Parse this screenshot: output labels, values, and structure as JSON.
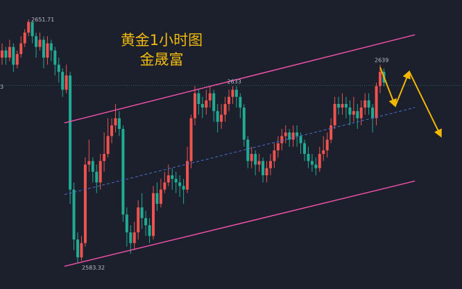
{
  "chart_data": {
    "type": "candlestick",
    "title": "黄金1小时图",
    "subtitle": "金晟富",
    "ylim": [
      2581,
      2657
    ],
    "grid": false,
    "colors": {
      "up": "#ef5350",
      "down": "#22ab94",
      "channel": "#f050a8",
      "midline": "#4a6fd0",
      "arrow": "#f5b800",
      "price_line": "#2f6b5e",
      "background": "#1b202c"
    },
    "first_open": 2641,
    "close": [
      2643,
      2641,
      2644,
      2639,
      2642,
      2645,
      2648,
      2651,
      2647,
      2644,
      2646,
      2641,
      2645,
      2643,
      2639,
      2637,
      2632,
      2636,
      2604,
      2590,
      2585,
      2589,
      2611,
      2612,
      2609,
      2606,
      2612,
      2614,
      2619,
      2622,
      2624,
      2621,
      2597,
      2592,
      2589,
      2592,
      2599,
      2596,
      2594,
      2591,
      2603,
      2600,
      2604,
      2606,
      2608,
      2607,
      2606,
      2605,
      2604,
      2612,
      2624,
      2631,
      2628,
      2627,
      2629,
      2631,
      2626,
      2623,
      2625,
      2628,
      2630,
      2632,
      2630,
      2627,
      2618,
      2612,
      2614,
      2611,
      2612,
      2608,
      2610,
      2612,
      2615,
      2617,
      2619,
      2620,
      2618,
      2620,
      2619,
      2617,
      2614,
      2612,
      2611,
      2610,
      2614,
      2615,
      2618,
      2622,
      2628,
      2627,
      2628,
      2627,
      2625,
      2626,
      2624,
      2627,
      2629,
      2627,
      2624,
      2633,
      2637,
      2634
    ],
    "high": [
      2645,
      2644,
      2646,
      2645,
      2643,
      2647,
      2649,
      2651.71,
      2651,
      2648,
      2648,
      2647,
      2647,
      2646,
      2644,
      2641,
      2638,
      2639,
      2637,
      2606,
      2592,
      2591,
      2613,
      2618,
      2613,
      2611,
      2614,
      2620,
      2624,
      2624,
      2628,
      2626,
      2622,
      2599,
      2594,
      2595,
      2601,
      2603,
      2598,
      2596,
      2605,
      2606,
      2607,
      2609,
      2611,
      2610,
      2609,
      2608,
      2607,
      2616,
      2625,
      2633,
      2632,
      2630,
      2632,
      2633,
      2632,
      2628,
      2628,
      2630,
      2632,
      2633,
      2633,
      2631,
      2628,
      2619,
      2616,
      2615,
      2614,
      2613,
      2612,
      2614,
      2617,
      2619,
      2621,
      2622,
      2621,
      2622,
      2622,
      2620,
      2618,
      2616,
      2614,
      2613,
      2616,
      2619,
      2620,
      2624,
      2630,
      2630,
      2631,
      2630,
      2629,
      2630,
      2628,
      2629,
      2631,
      2631,
      2628,
      2634,
      2639,
      2638
    ],
    "low": [
      2639,
      2639,
      2640,
      2637,
      2638,
      2641,
      2644,
      2647,
      2645,
      2641,
      2643,
      2638,
      2639,
      2640,
      2636,
      2634,
      2630,
      2631,
      2600,
      2587,
      2583.32,
      2584,
      2588,
      2609,
      2606,
      2603,
      2604,
      2609,
      2613,
      2617,
      2620,
      2619,
      2595,
      2588,
      2586,
      2587,
      2590,
      2593,
      2591,
      2589,
      2590,
      2598,
      2599,
      2603,
      2605,
      2604,
      2603,
      2602,
      2600,
      2603,
      2610,
      2622,
      2625,
      2624,
      2625,
      2627,
      2623,
      2620,
      2621,
      2623,
      2626,
      2628,
      2627,
      2624,
      2616,
      2610,
      2610,
      2608,
      2609,
      2606,
      2606,
      2608,
      2610,
      2613,
      2615,
      2617,
      2616,
      2616,
      2616,
      2614,
      2612,
      2610,
      2609,
      2608,
      2609,
      2612,
      2613,
      2617,
      2621,
      2625,
      2625,
      2624,
      2622,
      2623,
      2621,
      2622,
      2625,
      2625,
      2620,
      2622,
      2631,
      2633
    ],
    "annotations": [
      {
        "text": "2651.71",
        "index": 7,
        "price": 2651.71,
        "kind": "high"
      },
      {
        "text": "2583.32",
        "index": 20,
        "price": 2583.32,
        "kind": "low"
      },
      {
        "text": "2633",
        "index": 61,
        "price": 2633,
        "kind": "high"
      },
      {
        "text": "2639",
        "index": 100,
        "price": 2639,
        "kind": "high"
      }
    ],
    "price_line": {
      "price": 2633.2,
      "label": "3"
    },
    "channel": {
      "upper": [
        [
          16.5,
          2622.7
        ],
        [
          109.2,
          2647.4
        ]
      ],
      "middle": [
        [
          16.5,
          2602.6
        ],
        [
          109.2,
          2627.0
        ]
      ],
      "lower": [
        [
          16.5,
          2582.5
        ],
        [
          109.2,
          2606.4
        ]
      ]
    },
    "projection_arrows": [
      [
        100,
        2638.3
      ],
      [
        104,
        2627.4
      ],
      [
        107.7,
        2637.1
      ],
      [
        116.1,
        2618.9
      ]
    ]
  }
}
